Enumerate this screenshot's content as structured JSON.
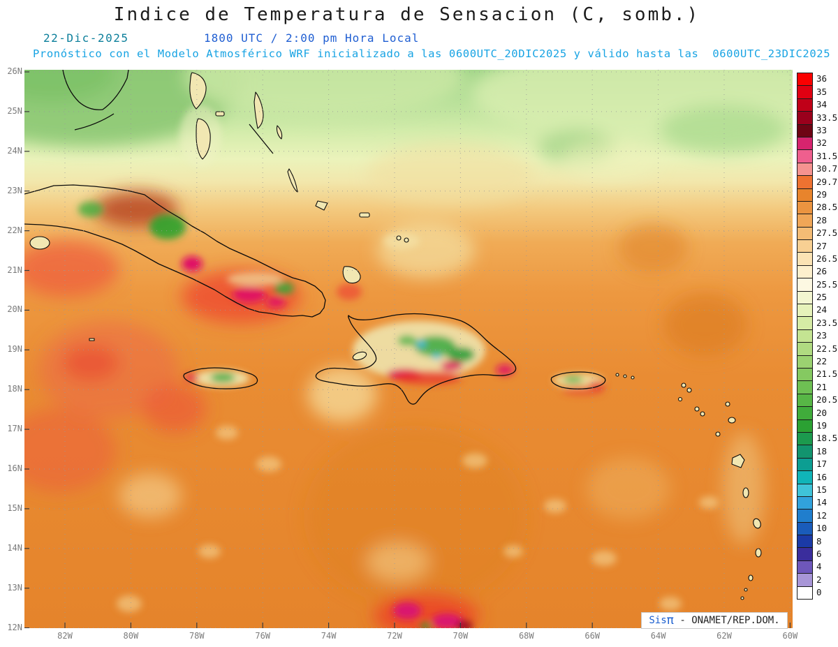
{
  "title": "Indice de Temperatura de Sensacion (C, somb.)",
  "subtitle": {
    "date": "22-Dic-2025",
    "time": "1800 UTC / 2:00 pm Hora Local",
    "forecast": "Pronóstico con el Modelo Atmosférico WRF inicializado a las 0600UTC_20DIC2025 y válido hasta las  0600UTC_23DIC2025"
  },
  "map": {
    "lat_labels": [
      "26N",
      "25N",
      "24N",
      "23N",
      "22N",
      "21N",
      "20N",
      "19N",
      "18N",
      "17N",
      "16N",
      "15N",
      "14N",
      "13N",
      "12N"
    ],
    "lon_labels": [
      "82W",
      "80W",
      "78W",
      "76W",
      "74W",
      "72W",
      "70W",
      "68W",
      "66W",
      "64W",
      "62W",
      "60W"
    ]
  },
  "colorbar": {
    "entries": [
      {
        "label": "36",
        "color": "#fa0000"
      },
      {
        "label": "35",
        "color": "#e00012"
      },
      {
        "label": "34",
        "color": "#c00018"
      },
      {
        "label": "33.5",
        "color": "#9a001c"
      },
      {
        "label": "33",
        "color": "#6e0414"
      },
      {
        "label": "32",
        "color": "#d6246e"
      },
      {
        "label": "31.5",
        "color": "#ef5f8e"
      },
      {
        "label": "30.7",
        "color": "#f59390"
      },
      {
        "label": "29.7",
        "color": "#ee7231"
      },
      {
        "label": "29",
        "color": "#e8842c"
      },
      {
        "label": "28.5",
        "color": "#eb9440"
      },
      {
        "label": "28",
        "color": "#f0a657"
      },
      {
        "label": "27.5",
        "color": "#f4bc75"
      },
      {
        "label": "27",
        "color": "#f8d093"
      },
      {
        "label": "26.5",
        "color": "#fbe3b4"
      },
      {
        "label": "26",
        "color": "#fdf0cd"
      },
      {
        "label": "25.5",
        "color": "#fdf8e2"
      },
      {
        "label": "25",
        "color": "#f3f6d0"
      },
      {
        "label": "24",
        "color": "#e6f2ba"
      },
      {
        "label": "23.5",
        "color": "#d6eca5"
      },
      {
        "label": "23",
        "color": "#c4e492"
      },
      {
        "label": "22.5",
        "color": "#b0db81"
      },
      {
        "label": "22",
        "color": "#9bd271"
      },
      {
        "label": "21.5",
        "color": "#85c961"
      },
      {
        "label": "21",
        "color": "#6ec053"
      },
      {
        "label": "20.5",
        "color": "#57b646"
      },
      {
        "label": "20",
        "color": "#40ac3b"
      },
      {
        "label": "19",
        "color": "#2ba133"
      },
      {
        "label": "18.5",
        "color": "#1c9a4e"
      },
      {
        "label": "18",
        "color": "#12946e"
      },
      {
        "label": "17",
        "color": "#0c9e92"
      },
      {
        "label": "16",
        "color": "#10b4b8"
      },
      {
        "label": "15",
        "color": "#3fc3d8"
      },
      {
        "label": "14",
        "color": "#31a2dc"
      },
      {
        "label": "12",
        "color": "#207ecd"
      },
      {
        "label": "10",
        "color": "#1a5cba"
      },
      {
        "label": "8",
        "color": "#1b3aa6"
      },
      {
        "label": "6",
        "color": "#3a2d9c"
      },
      {
        "label": "4",
        "color": "#6e57bb"
      },
      {
        "label": "2",
        "color": "#a896d7"
      },
      {
        "label": "0",
        "color": "#ffffff"
      }
    ]
  },
  "watermark": {
    "sis": "Sis",
    "pi": "π",
    "rest": "- ONAMET/REP.DOM."
  }
}
